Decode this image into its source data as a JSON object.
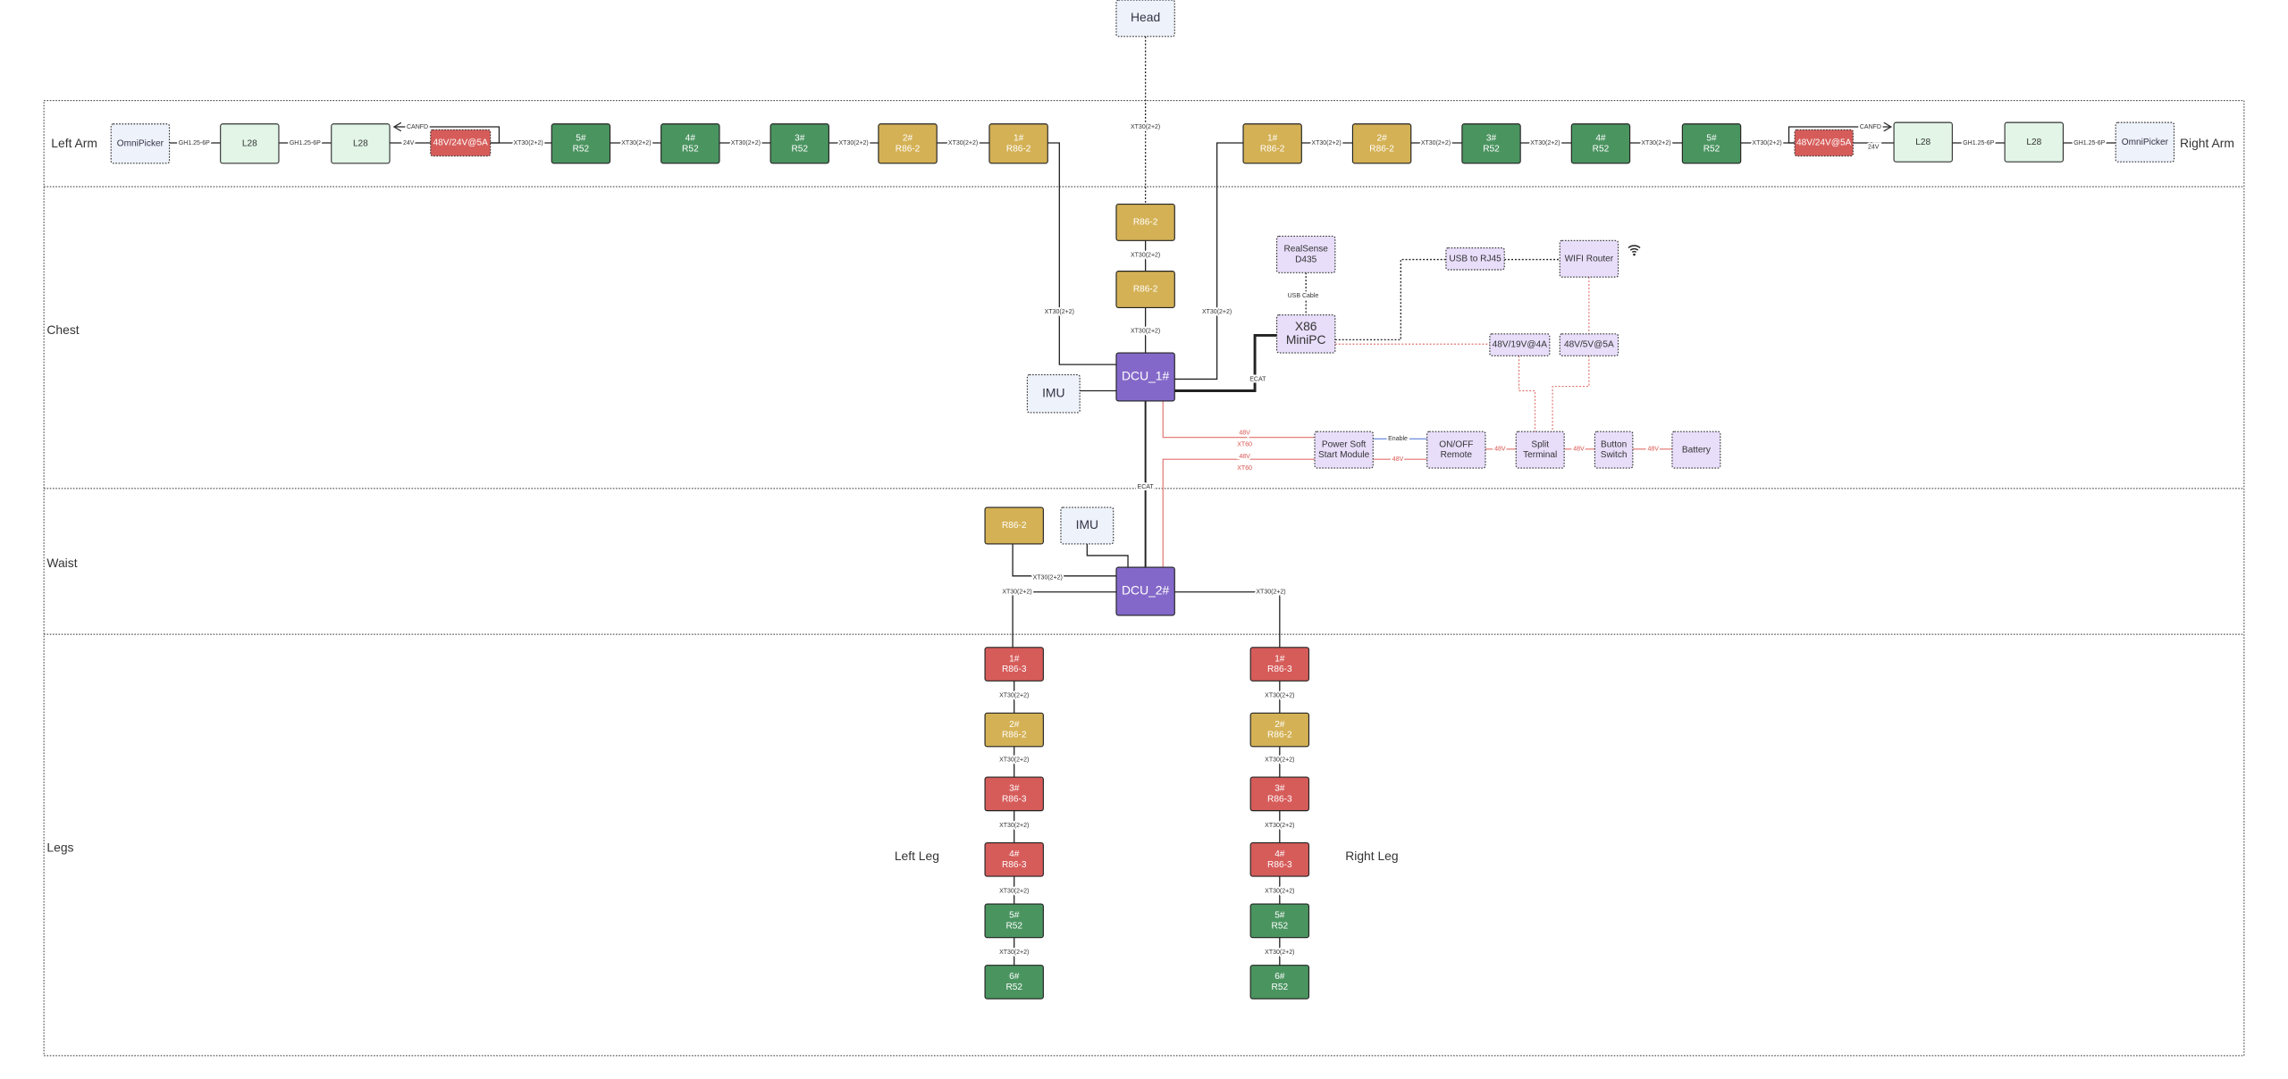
{
  "sections": {
    "left_arm": "Left Arm",
    "right_arm": "Right Arm",
    "chest": "Chest",
    "waist": "Waist",
    "legs": "Legs",
    "left_leg": "Left Leg",
    "right_leg": "Right Leg"
  },
  "colors": {
    "r52": "#4a9460",
    "r86_2": "#d4b155",
    "r86_3": "#d65c5a",
    "dcu": "#8468c9",
    "psu": "#d65c5a",
    "l28": "#e2f5e7",
    "ref": "#eef2fb",
    "device": "#e8defa",
    "power_line": "#e0706c",
    "enable_line": "#5b7fd6"
  },
  "nodes": [
    {
      "id": "head",
      "kind": "ref",
      "lines": [
        "Head"
      ]
    },
    {
      "id": "la_omni",
      "kind": "ref",
      "lines": [
        "OmniPicker"
      ]
    },
    {
      "id": "la_l28a",
      "kind": "l28",
      "lines": [
        "L28"
      ]
    },
    {
      "id": "la_l28b",
      "kind": "l28",
      "lines": [
        "L28"
      ]
    },
    {
      "id": "la_psu",
      "kind": "psu",
      "lines": [
        "48V/24V@5A"
      ]
    },
    {
      "id": "la_5",
      "kind": "r52",
      "lines": [
        "5#",
        "R52"
      ]
    },
    {
      "id": "la_4",
      "kind": "r52",
      "lines": [
        "4#",
        "R52"
      ]
    },
    {
      "id": "la_3",
      "kind": "r52",
      "lines": [
        "3#",
        "R52"
      ]
    },
    {
      "id": "la_2",
      "kind": "r86_2",
      "lines": [
        "2#",
        "R86-2"
      ]
    },
    {
      "id": "la_1",
      "kind": "r86_2",
      "lines": [
        "1#",
        "R86-2"
      ]
    },
    {
      "id": "ra_1",
      "kind": "r86_2",
      "lines": [
        "1#",
        "R86-2"
      ]
    },
    {
      "id": "ra_2",
      "kind": "r86_2",
      "lines": [
        "2#",
        "R86-2"
      ]
    },
    {
      "id": "ra_3",
      "kind": "r52",
      "lines": [
        "3#",
        "R52"
      ]
    },
    {
      "id": "ra_4",
      "kind": "r52",
      "lines": [
        "4#",
        "R52"
      ]
    },
    {
      "id": "ra_5",
      "kind": "r52",
      "lines": [
        "5#",
        "R52"
      ]
    },
    {
      "id": "ra_psu",
      "kind": "psu",
      "lines": [
        "48V/24V@5A"
      ]
    },
    {
      "id": "ra_l28a",
      "kind": "l28",
      "lines": [
        "L28"
      ]
    },
    {
      "id": "ra_l28b",
      "kind": "l28",
      "lines": [
        "L28"
      ]
    },
    {
      "id": "ra_omni",
      "kind": "ref",
      "lines": [
        "OmniPicker"
      ]
    },
    {
      "id": "ch_r86a",
      "kind": "r86_2",
      "lines": [
        "R86-2"
      ]
    },
    {
      "id": "ch_r86b",
      "kind": "r86_2",
      "lines": [
        "R86-2"
      ]
    },
    {
      "id": "dcu1",
      "kind": "dcu",
      "lines": [
        "DCU_1#"
      ]
    },
    {
      "id": "imu1",
      "kind": "ref",
      "lines": [
        "IMU"
      ]
    },
    {
      "id": "realsense",
      "kind": "device",
      "lines": [
        "RealSense",
        "D435"
      ]
    },
    {
      "id": "x86",
      "kind": "device",
      "lines": [
        "X86",
        "MiniPC"
      ]
    },
    {
      "id": "usbrj45",
      "kind": "device",
      "lines": [
        "USB to RJ45"
      ]
    },
    {
      "id": "wifi",
      "kind": "device",
      "lines": [
        "WIFI Router"
      ]
    },
    {
      "id": "p19",
      "kind": "device",
      "lines": [
        "48V/19V@4A"
      ]
    },
    {
      "id": "p5",
      "kind": "device",
      "lines": [
        "48V/5V@5A"
      ]
    },
    {
      "id": "softstart",
      "kind": "device",
      "lines": [
        "Power Soft",
        "Start Module"
      ]
    },
    {
      "id": "onoff",
      "kind": "device",
      "lines": [
        "ON/OFF",
        "Remote"
      ]
    },
    {
      "id": "split",
      "kind": "device",
      "lines": [
        "Split",
        "Terminal"
      ]
    },
    {
      "id": "button",
      "kind": "device",
      "lines": [
        "Button",
        "Switch"
      ]
    },
    {
      "id": "battery",
      "kind": "device",
      "lines": [
        "Battery"
      ]
    },
    {
      "id": "w_r86",
      "kind": "r86_2",
      "lines": [
        "R86-2"
      ]
    },
    {
      "id": "imu2",
      "kind": "ref",
      "lines": [
        "IMU"
      ]
    },
    {
      "id": "dcu2",
      "kind": "dcu",
      "lines": [
        "DCU_2#"
      ]
    },
    {
      "id": "ll1",
      "kind": "r86_3",
      "lines": [
        "1#",
        "R86-3"
      ]
    },
    {
      "id": "ll2",
      "kind": "r86_2",
      "lines": [
        "2#",
        "R86-2"
      ]
    },
    {
      "id": "ll3",
      "kind": "r86_3",
      "lines": [
        "3#",
        "R86-3"
      ]
    },
    {
      "id": "ll4",
      "kind": "r86_3",
      "lines": [
        "4#",
        "R86-3"
      ]
    },
    {
      "id": "ll5",
      "kind": "r52",
      "lines": [
        "5#",
        "R52"
      ]
    },
    {
      "id": "ll6",
      "kind": "r52",
      "lines": [
        "6#",
        "R52"
      ]
    },
    {
      "id": "rl1",
      "kind": "r86_3",
      "lines": [
        "1#",
        "R86-3"
      ]
    },
    {
      "id": "rl2",
      "kind": "r86_2",
      "lines": [
        "2#",
        "R86-2"
      ]
    },
    {
      "id": "rl3",
      "kind": "r86_3",
      "lines": [
        "3#",
        "R86-3"
      ]
    },
    {
      "id": "rl4",
      "kind": "r86_3",
      "lines": [
        "4#",
        "R86-3"
      ]
    },
    {
      "id": "rl5",
      "kind": "r52",
      "lines": [
        "5#",
        "R52"
      ]
    },
    {
      "id": "rl6",
      "kind": "r52",
      "lines": [
        "6#",
        "R52"
      ]
    }
  ],
  "connectors": {
    "head_chest": "XT30(2+2)",
    "la_gh1": "GH1.25-6P",
    "la_gh2": "GH1.25-6P",
    "la_24v": "24V",
    "la_canfd": "CANFD",
    "la_x5": "XT30(2+2)",
    "la_x4": "XT30(2+2)",
    "la_x3": "XT30(2+2)",
    "la_x2": "XT30(2+2)",
    "la_x1": "XT30(2+2)",
    "ra_x1": "XT30(2+2)",
    "ra_x2": "XT30(2+2)",
    "ra_x3": "XT30(2+2)",
    "ra_x4": "XT30(2+2)",
    "ra_x5": "XT30(2+2)",
    "ra_canfd": "CANFD",
    "ra_24v": "24V",
    "ra_gh1": "GH1.25-6P",
    "ra_gh2": "GH1.25-6P",
    "ch_x1": "XT30(2+2)",
    "ch_x2": "XT30(2+2)",
    "ch_left": "XT30(2+2)",
    "ch_right": "XT30(2+2)",
    "ecat_x86": "ECAT",
    "usb_cable": "USB Cable",
    "p1_48v": "48V",
    "p1_xt60": "XT60",
    "p2_48v": "48V",
    "p2_xt60": "XT60",
    "enable": "Enable",
    "ss_48v": "48V",
    "onoff_48v": "48V",
    "split_48v": "48V",
    "button_48v": "48V",
    "ecat_dcu": "ECAT",
    "w_r86": "XT30(2+2)",
    "w_left": "XT30(2+2)",
    "w_right": "XT30(2+2)",
    "ll_1": "XT30(2+2)",
    "ll_2": "XT30(2+2)",
    "ll_3": "XT30(2+2)",
    "ll_4": "XT30(2+2)",
    "ll_5": "XT30(2+2)",
    "rl_1": "XT30(2+2)",
    "rl_2": "XT30(2+2)",
    "rl_3": "XT30(2+2)",
    "rl_4": "XT30(2+2)",
    "rl_5": "XT30(2+2)"
  },
  "icons": {
    "wifi": "wifi-icon",
    "arrow": "arrow-right-icon"
  }
}
